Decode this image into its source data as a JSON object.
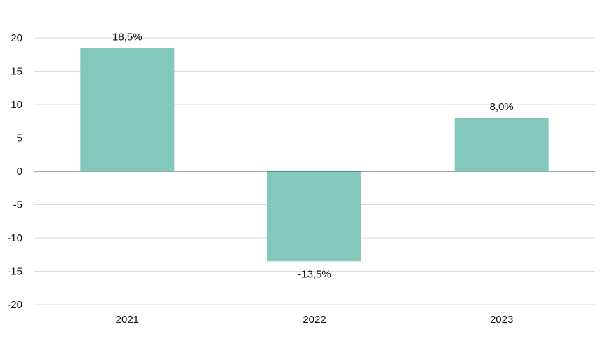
{
  "chart_data": {
    "type": "bar",
    "title": "",
    "xlabel": "",
    "ylabel": "",
    "categories": [
      "2021",
      "2022",
      "2023"
    ],
    "values": [
      18.5,
      -13.5,
      8.0
    ],
    "data_labels": [
      "18,5%",
      "-13,5%",
      "8,0%"
    ],
    "ylim": [
      -20,
      20
    ],
    "yticks": [
      "20",
      "15",
      "10",
      "5",
      "0",
      "-5",
      "-10",
      "-15",
      "-20"
    ],
    "grid": true,
    "legend": "none",
    "colors": {
      "bar": "#83c8ba",
      "zero_line": "#1f5c5a",
      "grid": "#dcdcdc"
    }
  }
}
